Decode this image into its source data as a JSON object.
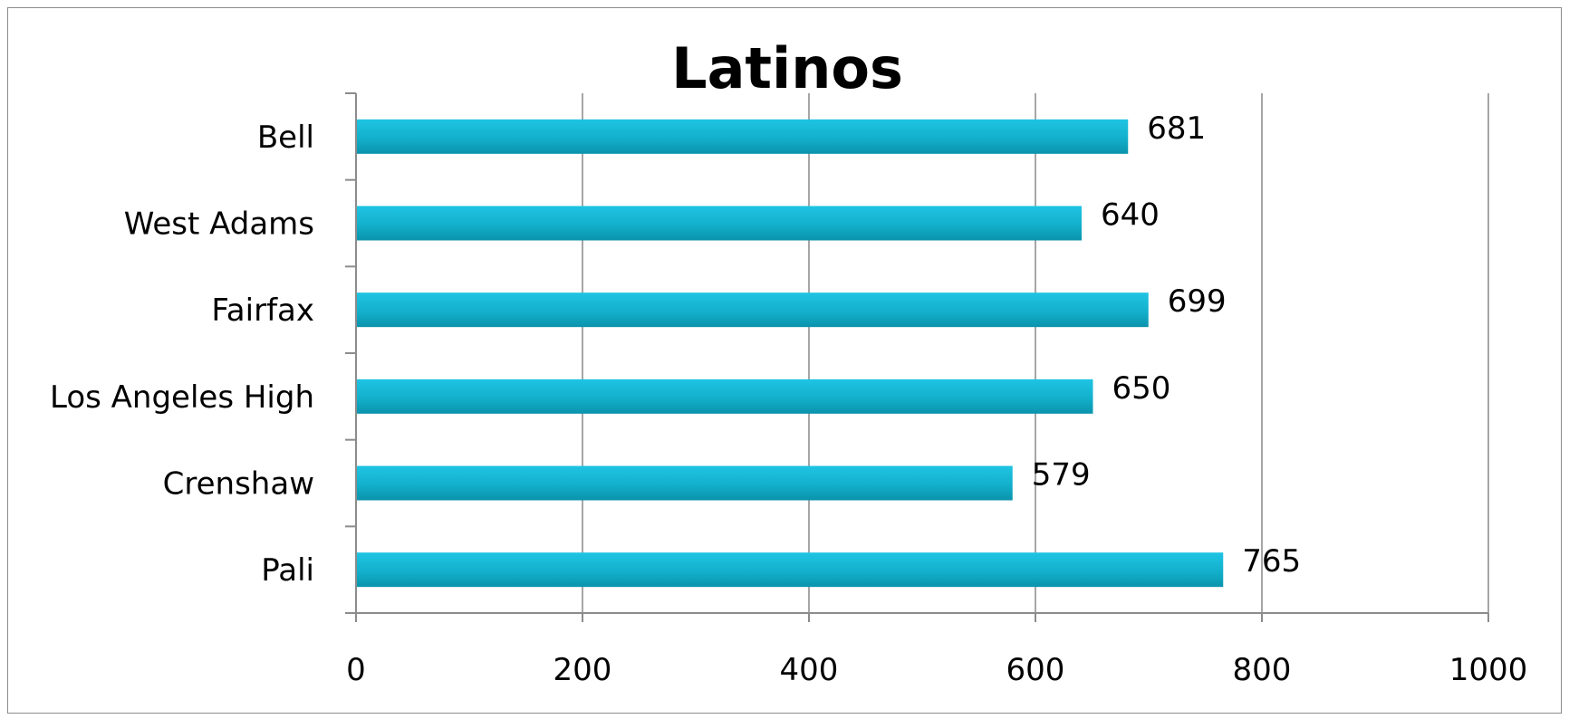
{
  "chart_data": {
    "type": "bar",
    "orientation": "horizontal",
    "title": "Latinos",
    "categories": [
      "Bell",
      "West Adams",
      "Fairfax",
      "Los Angeles High",
      "Crenshaw",
      "Pali"
    ],
    "values": [
      681,
      640,
      699,
      650,
      579,
      765
    ],
    "data_labels": [
      "681",
      "640",
      "699",
      "650",
      "579",
      "765"
    ],
    "xlim": [
      0,
      1000
    ],
    "x_ticks": [
      0,
      200,
      400,
      600,
      800,
      1000
    ],
    "x_tick_labels": [
      "0",
      "200",
      "400",
      "600",
      "800",
      "1000"
    ],
    "xlabel": "",
    "ylabel": "",
    "grid": "vertical",
    "legend": "none",
    "colors": {
      "bar_top": "#1fc4e3",
      "bar_bottom": "#0a93ab",
      "grid": "#a6a6a6",
      "axis": "#8c8c8c"
    }
  }
}
